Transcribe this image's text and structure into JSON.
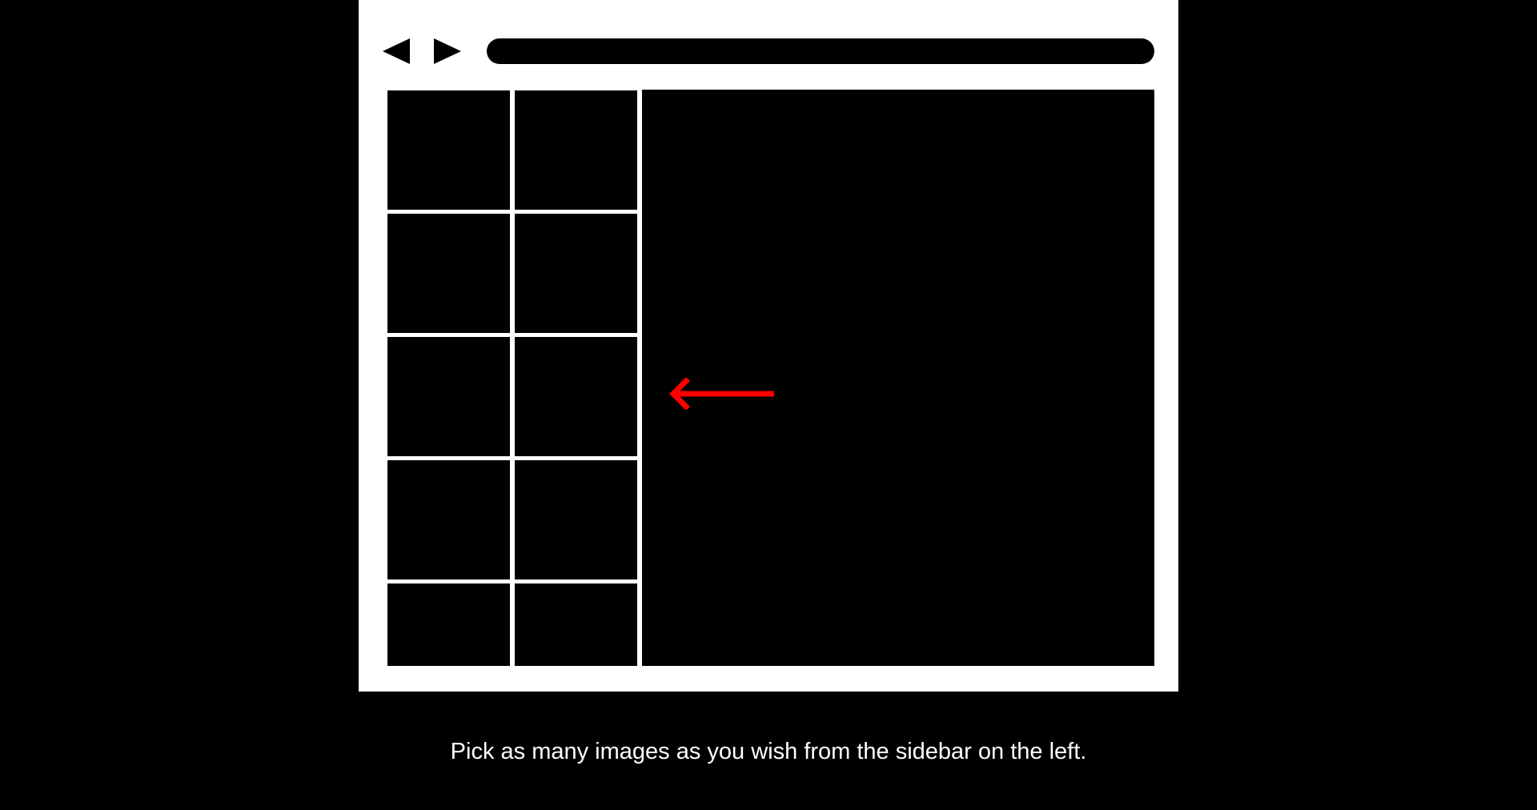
{
  "browser": {
    "back_icon": "left-triangle-icon",
    "forward_icon": "right-triangle-icon",
    "address_value": ""
  },
  "sidebar": {
    "thumbnails": [
      {
        "row": 1,
        "col": 1
      },
      {
        "row": 1,
        "col": 2
      },
      {
        "row": 2,
        "col": 1
      },
      {
        "row": 2,
        "col": 2
      },
      {
        "row": 3,
        "col": 1
      },
      {
        "row": 3,
        "col": 2
      },
      {
        "row": 4,
        "col": 1
      },
      {
        "row": 4,
        "col": 2
      },
      {
        "row": 5,
        "col": 1
      },
      {
        "row": 5,
        "col": 2
      }
    ]
  },
  "hint": {
    "arrow_icon": "arrow-left-icon",
    "arrow_color": "#ff0000",
    "caption": "Pick as many images as you wish from the sidebar on the left."
  },
  "colors": {
    "background": "#000000",
    "frame": "#ffffff",
    "accent": "#ff0000"
  }
}
